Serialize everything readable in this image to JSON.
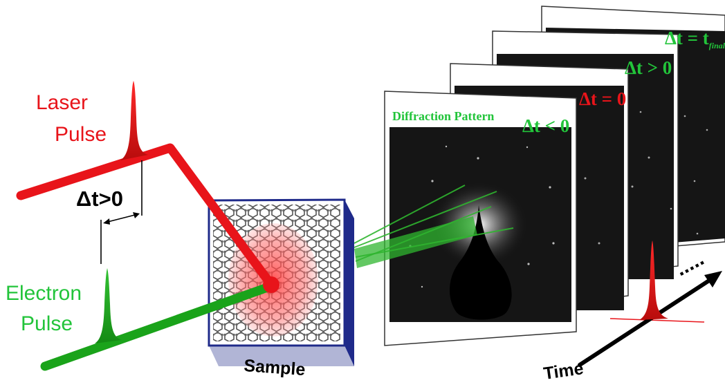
{
  "colors": {
    "laser": "#e8141a",
    "electron": "#1aa31a",
    "label_green": "#22c43a",
    "label_red": "#e8141a",
    "sample_frame": "#1f2a8a",
    "screen_bg": "#101010",
    "text_black": "#000000"
  },
  "labels": {
    "laser_line1": "Laser",
    "laser_line2": "Pulse",
    "electron_line1": "Electron",
    "electron_line2": "Pulse",
    "delay": "Δt>0",
    "sample": "Sample",
    "time": "Time",
    "ellipsis": "....."
  },
  "frames": [
    {
      "label": "Δt = t",
      "subscript": "final",
      "color": "#22c43a"
    },
    {
      "label": "Δt > 0",
      "color": "#22c43a"
    },
    {
      "label": "Δt = 0",
      "color": "#e8141a"
    },
    {
      "label": "Δt < 0",
      "color": "#22c43a",
      "title": "Diffraction Pattern"
    }
  ]
}
